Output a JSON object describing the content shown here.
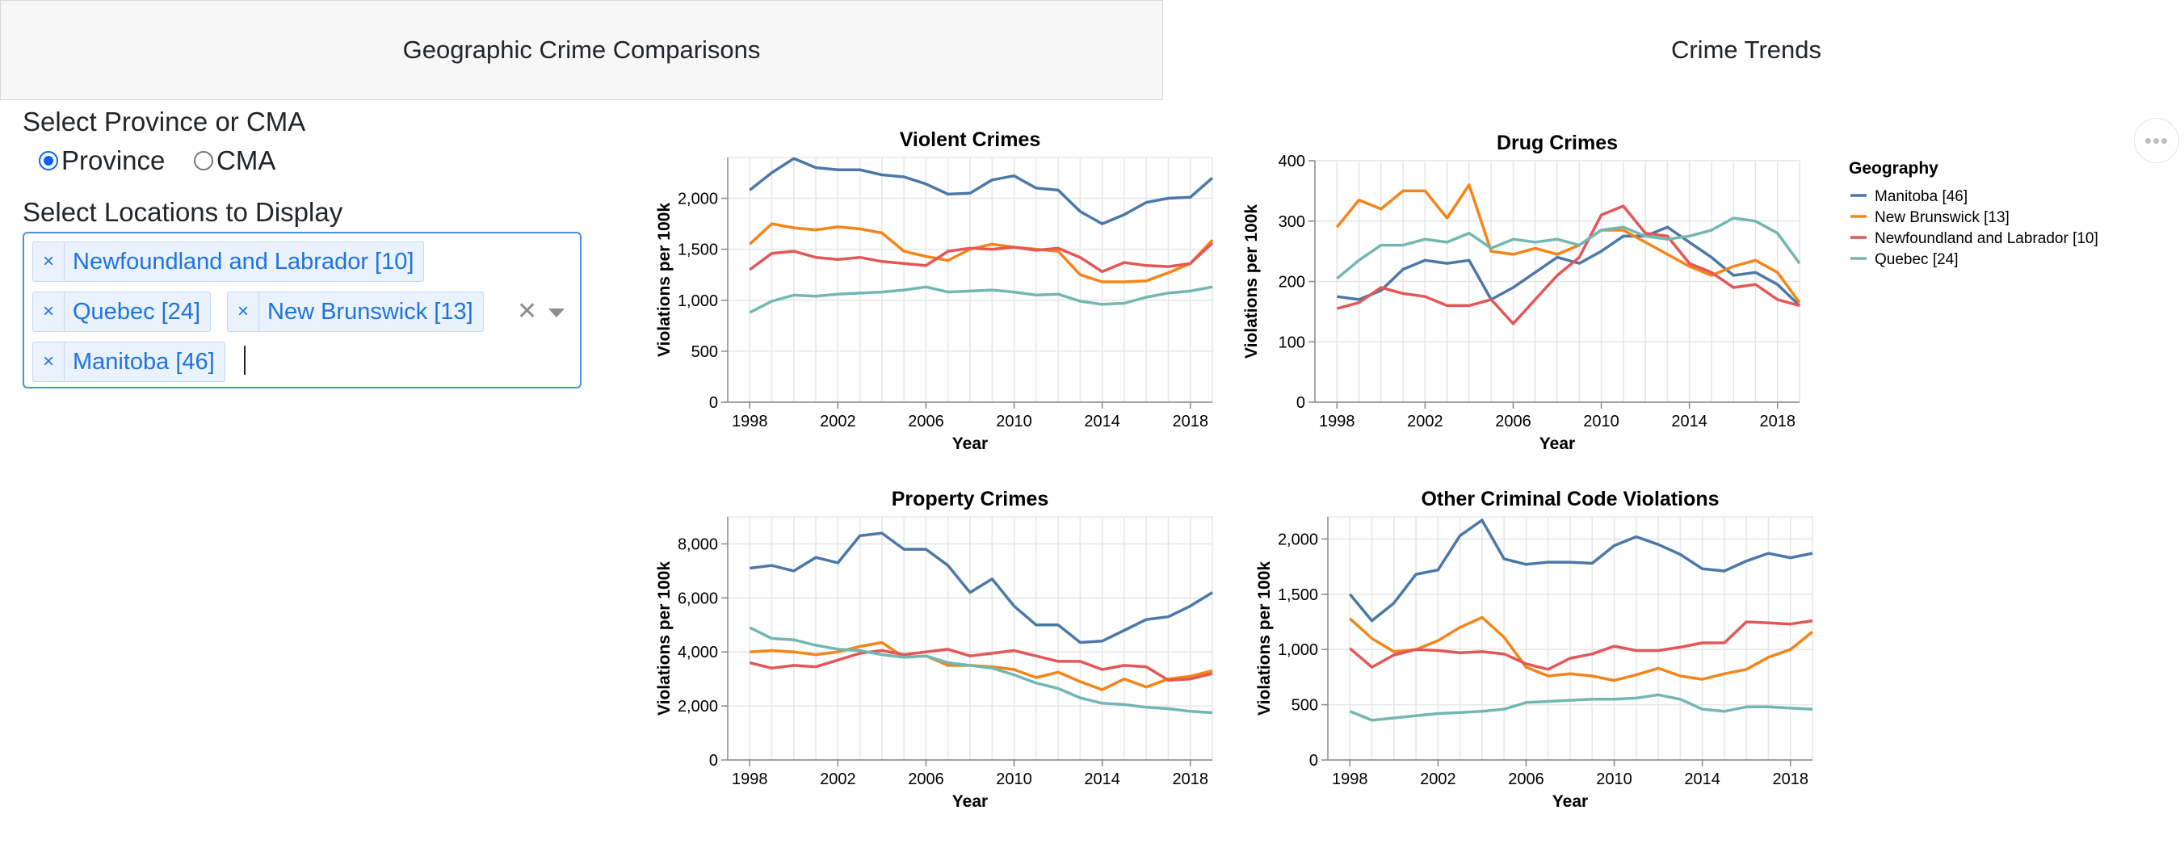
{
  "tabs": {
    "geographic": "Geographic Crime Comparisons",
    "trends": "Crime Trends"
  },
  "controls": {
    "select_type_label": "Select Province or CMA",
    "radio_options": [
      {
        "label": "Province",
        "checked": true
      },
      {
        "label": "CMA",
        "checked": false
      }
    ],
    "select_locations_label": "Select Locations to Display",
    "selected_locations": [
      "Newfoundland and Labrador [10]",
      "Quebec [24]",
      "New Brunswick [13]",
      "Manitoba [46]"
    ],
    "clear_icon": "x-icon",
    "dropdown_icon": "chevron-down-icon"
  },
  "menu_icon": "more-horizontal-icon",
  "legend": {
    "title": "Geography",
    "entries": [
      {
        "name": "Manitoba [46]",
        "color": "#4c78a8"
      },
      {
        "name": "New Brunswick [13]",
        "color": "#f58518"
      },
      {
        "name": "Newfoundland and Labrador [10]",
        "color": "#e45756"
      },
      {
        "name": "Quebec [24]",
        "color": "#72b7b2"
      }
    ]
  },
  "chart_data": [
    {
      "type": "line",
      "title": "Violent Crimes",
      "xlabel": "Year",
      "ylabel": "Violations per 100k",
      "x": [
        1998,
        1999,
        2000,
        2001,
        2002,
        2003,
        2004,
        2005,
        2006,
        2007,
        2008,
        2009,
        2010,
        2011,
        2012,
        2013,
        2014,
        2015,
        2016,
        2017,
        2018,
        2019
      ],
      "xlim": [
        1997,
        2019
      ],
      "ylim": [
        0,
        2400
      ],
      "x_ticks": [
        1998,
        2002,
        2006,
        2010,
        2014,
        2018
      ],
      "y_ticks": [
        0,
        500,
        1000,
        1500,
        2000
      ],
      "y_tick_labels": [
        "0",
        "500",
        "1,000",
        "1,500",
        "2,000"
      ],
      "series": [
        {
          "name": "Manitoba [46]",
          "values": [
            2080,
            2250,
            2390,
            2300,
            2280,
            2280,
            2230,
            2210,
            2140,
            2040,
            2050,
            2180,
            2220,
            2100,
            2080,
            1870,
            1750,
            1840,
            1960,
            2000,
            2010,
            2200
          ]
        },
        {
          "name": "New Brunswick [13]",
          "values": [
            1550,
            1750,
            1710,
            1690,
            1720,
            1700,
            1660,
            1480,
            1430,
            1390,
            1500,
            1550,
            1520,
            1500,
            1480,
            1250,
            1180,
            1180,
            1190,
            1270,
            1360,
            1590
          ]
        },
        {
          "name": "Newfoundland and Labrador [10]",
          "values": [
            1300,
            1460,
            1480,
            1420,
            1400,
            1420,
            1380,
            1360,
            1340,
            1480,
            1510,
            1500,
            1520,
            1490,
            1510,
            1420,
            1280,
            1370,
            1340,
            1330,
            1360,
            1560
          ]
        },
        {
          "name": "Quebec [24]",
          "values": [
            880,
            990,
            1050,
            1040,
            1060,
            1070,
            1080,
            1100,
            1130,
            1080,
            1090,
            1100,
            1080,
            1050,
            1060,
            990,
            960,
            970,
            1030,
            1070,
            1090,
            1130
          ]
        }
      ]
    },
    {
      "type": "line",
      "title": "Drug Crimes",
      "xlabel": "Year",
      "ylabel": "Violations per 100k",
      "x": [
        1998,
        1999,
        2000,
        2001,
        2002,
        2003,
        2004,
        2005,
        2006,
        2007,
        2008,
        2009,
        2010,
        2011,
        2012,
        2013,
        2014,
        2015,
        2016,
        2017,
        2018,
        2019
      ],
      "xlim": [
        1997,
        2019
      ],
      "ylim": [
        0,
        400
      ],
      "x_ticks": [
        1998,
        2002,
        2006,
        2010,
        2014,
        2018
      ],
      "y_ticks": [
        0,
        100,
        200,
        300,
        400
      ],
      "y_tick_labels": [
        "0",
        "100",
        "200",
        "300",
        "400"
      ],
      "series": [
        {
          "name": "Manitoba [46]",
          "values": [
            175,
            170,
            185,
            220,
            235,
            230,
            235,
            170,
            190,
            215,
            240,
            230,
            250,
            275,
            275,
            290,
            265,
            240,
            210,
            215,
            195,
            160
          ]
        },
        {
          "name": "New Brunswick [13]",
          "values": [
            290,
            335,
            320,
            350,
            350,
            305,
            360,
            250,
            245,
            255,
            245,
            260,
            285,
            285,
            265,
            245,
            225,
            210,
            225,
            235,
            215,
            165
          ]
        },
        {
          "name": "Newfoundland and Labrador [10]",
          "values": [
            155,
            165,
            190,
            180,
            175,
            160,
            160,
            170,
            130,
            170,
            210,
            240,
            310,
            325,
            280,
            275,
            230,
            215,
            190,
            195,
            170,
            160
          ]
        },
        {
          "name": "Quebec [24]",
          "values": [
            205,
            235,
            260,
            260,
            270,
            265,
            280,
            255,
            270,
            265,
            270,
            260,
            285,
            290,
            275,
            270,
            275,
            285,
            305,
            300,
            280,
            230
          ]
        }
      ]
    },
    {
      "type": "line",
      "title": "Property Crimes",
      "xlabel": "Year",
      "ylabel": "Violations per 100k",
      "x": [
        1998,
        1999,
        2000,
        2001,
        2002,
        2003,
        2004,
        2005,
        2006,
        2007,
        2008,
        2009,
        2010,
        2011,
        2012,
        2013,
        2014,
        2015,
        2016,
        2017,
        2018,
        2019
      ],
      "xlim": [
        1997,
        2019
      ],
      "ylim": [
        0,
        9000
      ],
      "x_ticks": [
        1998,
        2002,
        2006,
        2010,
        2014,
        2018
      ],
      "y_ticks": [
        0,
        2000,
        4000,
        6000,
        8000
      ],
      "y_tick_labels": [
        "0",
        "2,000",
        "4,000",
        "6,000",
        "8,000"
      ],
      "series": [
        {
          "name": "Manitoba [46]",
          "values": [
            7100,
            7200,
            7000,
            7500,
            7300,
            8300,
            8400,
            7800,
            7800,
            7200,
            6200,
            6700,
            5700,
            5000,
            5000,
            4350,
            4400,
            4800,
            5200,
            5300,
            5700,
            6200
          ]
        },
        {
          "name": "New Brunswick [13]",
          "values": [
            4000,
            4050,
            4000,
            3900,
            4000,
            4200,
            4350,
            3800,
            3850,
            3500,
            3500,
            3450,
            3350,
            3050,
            3250,
            2900,
            2600,
            3000,
            2700,
            3000,
            3100,
            3300
          ]
        },
        {
          "name": "Newfoundland and Labrador [10]",
          "values": [
            3600,
            3400,
            3500,
            3450,
            3700,
            3950,
            4050,
            3900,
            4000,
            4100,
            3850,
            3950,
            4050,
            3850,
            3650,
            3650,
            3350,
            3500,
            3450,
            2950,
            3000,
            3200
          ]
        },
        {
          "name": "Quebec [24]",
          "values": [
            4900,
            4500,
            4450,
            4250,
            4100,
            4050,
            3900,
            3800,
            3850,
            3600,
            3500,
            3400,
            3150,
            2850,
            2650,
            2300,
            2100,
            2050,
            1950,
            1900,
            1800,
            1750
          ]
        }
      ]
    },
    {
      "type": "line",
      "title": "Other Criminal Code Violations",
      "xlabel": "Year",
      "ylabel": "Violations per 100k",
      "x": [
        1998,
        1999,
        2000,
        2001,
        2002,
        2003,
        2004,
        2005,
        2006,
        2007,
        2008,
        2009,
        2010,
        2011,
        2012,
        2013,
        2014,
        2015,
        2016,
        2017,
        2018,
        2019
      ],
      "xlim": [
        1997,
        2019
      ],
      "ylim": [
        0,
        2200
      ],
      "x_ticks": [
        1998,
        2002,
        2006,
        2010,
        2014,
        2018
      ],
      "y_ticks": [
        0,
        500,
        1000,
        1500,
        2000
      ],
      "y_tick_labels": [
        "0",
        "500",
        "1,000",
        "1,500",
        "2,000"
      ],
      "series": [
        {
          "name": "Manitoba [46]",
          "values": [
            1500,
            1260,
            1420,
            1680,
            1720,
            2030,
            2170,
            1820,
            1770,
            1790,
            1790,
            1780,
            1940,
            2020,
            1950,
            1860,
            1730,
            1710,
            1800,
            1870,
            1830,
            1870
          ]
        },
        {
          "name": "New Brunswick [13]",
          "values": [
            1280,
            1100,
            980,
            1000,
            1080,
            1200,
            1290,
            1110,
            840,
            760,
            780,
            760,
            720,
            770,
            830,
            760,
            730,
            780,
            820,
            930,
            1000,
            1160
          ]
        },
        {
          "name": "Newfoundland and Labrador [10]",
          "values": [
            1010,
            840,
            950,
            1000,
            990,
            970,
            980,
            960,
            870,
            820,
            920,
            960,
            1030,
            990,
            990,
            1020,
            1060,
            1060,
            1250,
            1240,
            1230,
            1260
          ]
        },
        {
          "name": "Quebec [24]",
          "values": [
            440,
            360,
            380,
            400,
            420,
            430,
            440,
            460,
            520,
            530,
            540,
            550,
            550,
            560,
            590,
            550,
            460,
            440,
            480,
            480,
            470,
            460
          ]
        }
      ]
    }
  ]
}
